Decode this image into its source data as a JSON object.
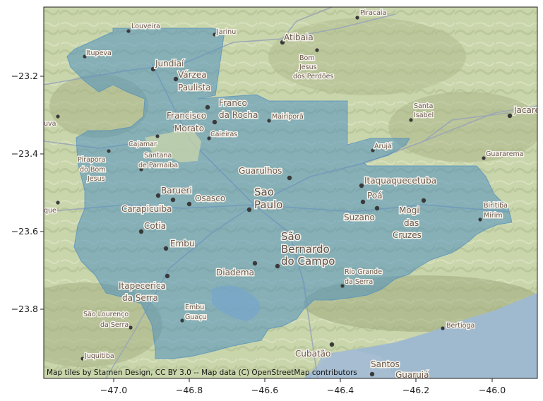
{
  "map": {
    "x_axis": {
      "ticks": [
        "−47.0",
        "−46.8",
        "−46.6",
        "−46.4",
        "−46.2",
        "−46.0"
      ]
    },
    "y_axis": {
      "ticks": [
        "−23.2",
        "−23.4",
        "−23.6",
        "−23.8"
      ]
    },
    "attribution": "Map tiles by Stamen Design, CC BY 3.0 -- Map data (C) OpenStreetMap contributors",
    "colors": {
      "land": "#c7d3a8",
      "water": "#9fb9cf",
      "overlay": "#4f8fbf",
      "roads": "#9aa6b6"
    },
    "places": [
      {
        "id": "louveira",
        "name": "Louveira",
        "size": "sm"
      },
      {
        "id": "jarinu",
        "name": "Jarinu",
        "size": "sm"
      },
      {
        "id": "piracaia",
        "name": "Piracaia",
        "size": "sm"
      },
      {
        "id": "atibaia",
        "name": "Atibaia",
        "size": "md"
      },
      {
        "id": "itupeva",
        "name": "Itupeva",
        "size": "sm"
      },
      {
        "id": "jundiai",
        "name": "Jundiaí",
        "size": "md"
      },
      {
        "id": "varzea1",
        "name": "Várzea",
        "size": "md"
      },
      {
        "id": "varzea2",
        "name": "Paulista",
        "size": "md"
      },
      {
        "id": "bomjesus1",
        "name": "Bom",
        "size": "sm"
      },
      {
        "id": "bomjesus2",
        "name": "Jesus",
        "size": "sm"
      },
      {
        "id": "bomjesus3",
        "name": "dos Perdões",
        "size": "sm"
      },
      {
        "id": "franco1",
        "name": "Franco",
        "size": "md"
      },
      {
        "id": "franco2",
        "name": "da Rocha",
        "size": "md"
      },
      {
        "id": "francisco1",
        "name": "Francisco",
        "size": "md"
      },
      {
        "id": "francisco2",
        "name": "Morato",
        "size": "md"
      },
      {
        "id": "caieiras",
        "name": "Caieiras",
        "size": "sm"
      },
      {
        "id": "mairipora",
        "name": "Mairiporã",
        "size": "sm"
      },
      {
        "id": "santaisabel1",
        "name": "Santa",
        "size": "sm"
      },
      {
        "id": "santaisabel2",
        "name": "Isabel",
        "size": "sm"
      },
      {
        "id": "jacarei",
        "name": "Jacare",
        "size": "md"
      },
      {
        "id": "uva",
        "name": "uva",
        "size": "sm"
      },
      {
        "id": "cajamar",
        "name": "Cajamar",
        "size": "sm"
      },
      {
        "id": "pirapora1",
        "name": "Pirapora",
        "size": "sm"
      },
      {
        "id": "pirapora2",
        "name": "do Bom",
        "size": "sm"
      },
      {
        "id": "pirapora3",
        "name": "Jesus",
        "size": "sm"
      },
      {
        "id": "santana1",
        "name": "Santana",
        "size": "sm"
      },
      {
        "id": "santana2",
        "name": "de Parnaíba",
        "size": "sm"
      },
      {
        "id": "aruja",
        "name": "Arujá",
        "size": "sm"
      },
      {
        "id": "guararema",
        "name": "Guararema",
        "size": "sm"
      },
      {
        "id": "guarulhos",
        "name": "Guarulhos",
        "size": "md"
      },
      {
        "id": "itaquaquecetuba",
        "name": "Itaquaquecetuba",
        "size": "md"
      },
      {
        "id": "barueri",
        "name": "Barueri",
        "size": "md"
      },
      {
        "id": "osasco",
        "name": "Osasco",
        "size": "md"
      },
      {
        "id": "saopaulo1",
        "name": "Sao",
        "size": "lg"
      },
      {
        "id": "saopaulo2",
        "name": "Paulo",
        "size": "lg"
      },
      {
        "id": "poa",
        "name": "Poá",
        "size": "md"
      },
      {
        "id": "que",
        "name": "que",
        "size": "sm"
      },
      {
        "id": "carapicuiba",
        "name": "Carapicuiba",
        "size": "md"
      },
      {
        "id": "suzano",
        "name": "Suzano",
        "size": "md"
      },
      {
        "id": "mogi1",
        "name": "Mogi",
        "size": "md"
      },
      {
        "id": "mogi2",
        "name": "das",
        "size": "md"
      },
      {
        "id": "mogi3",
        "name": "Cruzes",
        "size": "md"
      },
      {
        "id": "biritiba1",
        "name": "Biritiba",
        "size": "sm"
      },
      {
        "id": "biritiba2",
        "name": "Mirim",
        "size": "sm"
      },
      {
        "id": "cotia",
        "name": "Cotia",
        "size": "md"
      },
      {
        "id": "sbc1",
        "name": "São",
        "size": "lg"
      },
      {
        "id": "sbc2",
        "name": "Bernardo",
        "size": "lg"
      },
      {
        "id": "sbc3",
        "name": "do Campo",
        "size": "lg"
      },
      {
        "id": "embu",
        "name": "Embu",
        "size": "md"
      },
      {
        "id": "diadema",
        "name": "Diadema",
        "size": "md"
      },
      {
        "id": "riogrande1",
        "name": "Rio Grande",
        "size": "sm"
      },
      {
        "id": "riogrande2",
        "name": "da Serra",
        "size": "sm"
      },
      {
        "id": "itapecerica1",
        "name": "Itapecerica",
        "size": "md"
      },
      {
        "id": "itapecerica2",
        "name": "da Serra",
        "size": "md"
      },
      {
        "id": "saolourenco1",
        "name": "São Lourenço",
        "size": "sm"
      },
      {
        "id": "saolourenco2",
        "name": "da Serra",
        "size": "sm"
      },
      {
        "id": "embuguacu1",
        "name": "Embu",
        "size": "sm"
      },
      {
        "id": "embuguacu2",
        "name": "Guaçu",
        "size": "sm"
      },
      {
        "id": "bertioga",
        "name": "Bertioga",
        "size": "sm"
      },
      {
        "id": "juquitiba",
        "name": "Juquitiba",
        "size": "sm"
      },
      {
        "id": "cubatao",
        "name": "Cubatão",
        "size": "md"
      },
      {
        "id": "santos",
        "name": "Santos",
        "size": "md"
      },
      {
        "id": "guaruja",
        "name": "Guarujá",
        "size": "md"
      }
    ]
  }
}
